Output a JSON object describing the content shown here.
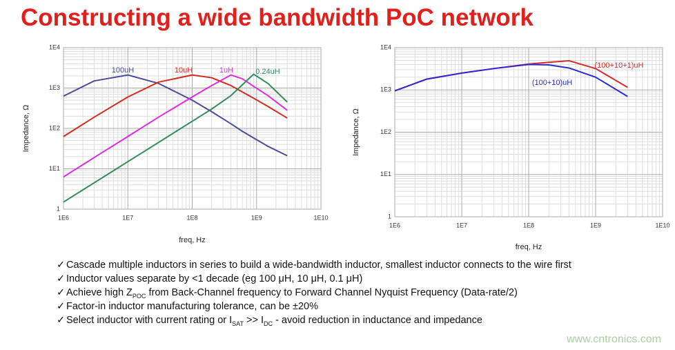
{
  "slide_title": "Constructing a wide bandwidth PoC network",
  "chart_data": [
    {
      "type": "line",
      "log_x": true,
      "log_y": true,
      "grid": true,
      "minor_grid": true,
      "xlabel": "freq, Hz",
      "ylabel": "Impedance, Ω",
      "x": [
        1000000,
        3000000,
        10000000,
        30000000,
        100000000,
        200000000,
        400000000,
        600000000,
        900000000,
        1500000000,
        3000000000
      ],
      "xlim": [
        1000000,
        10000000000
      ],
      "xticks": [
        {
          "value": 1000000,
          "label": "1E6"
        },
        {
          "value": 10000000,
          "label": "1E7"
        },
        {
          "value": 100000000,
          "label": "1E8"
        },
        {
          "value": 1000000000,
          "label": "1E9"
        },
        {
          "value": 10000000000,
          "label": "1E10"
        }
      ],
      "ylim": [
        1,
        10000
      ],
      "yticks": [
        1,
        {
          "value": 10,
          "label": "1E1"
        },
        {
          "value": 100,
          "label": "1E2"
        },
        {
          "value": 1000,
          "label": "1E3"
        },
        {
          "value": 10000,
          "label": "1E4"
        }
      ],
      "series": [
        {
          "name": "100uH",
          "color": "#4b4b9b",
          "values": [
            630,
            1500,
            2100,
            1300,
            500,
            260,
            130,
            85,
            58,
            36,
            21
          ]
        },
        {
          "name": "10uH",
          "color": "#d42a1e",
          "values": [
            63,
            190,
            600,
            1400,
            2100,
            1800,
            1150,
            800,
            560,
            350,
            180
          ]
        },
        {
          "name": "1uH",
          "color": "#e02ae0",
          "values": [
            6.3,
            19,
            63,
            190,
            600,
            1150,
            2100,
            1700,
            1100,
            650,
            280
          ]
        },
        {
          "name": "0.24uH",
          "color": "#2e8b57",
          "values": [
            1.5,
            4.5,
            15,
            45,
            150,
            300,
            650,
            1200,
            2200,
            1300,
            450
          ]
        }
      ]
    },
    {
      "type": "line",
      "log_x": true,
      "log_y": true,
      "grid": true,
      "minor_grid": true,
      "xlabel": "freq, Hz",
      "ylabel": "Impedance, Ω",
      "x": [
        1000000,
        3000000,
        10000000,
        30000000,
        100000000,
        200000000,
        400000000,
        1000000000,
        3000000000
      ],
      "xlim": [
        1000000,
        10000000000
      ],
      "xticks": [
        {
          "value": 1000000,
          "label": "1E6"
        },
        {
          "value": 10000000,
          "label": "1E7"
        },
        {
          "value": 100000000,
          "label": "1E8"
        },
        {
          "value": 1000000000,
          "label": "1E9"
        },
        {
          "value": 10000000000,
          "label": "1E10"
        }
      ],
      "ylim": [
        1,
        10000
      ],
      "yticks": [
        1,
        {
          "value": 10,
          "label": "1E1"
        },
        {
          "value": 100,
          "label": "1E2"
        },
        {
          "value": 1000,
          "label": "1E3"
        },
        {
          "value": 10000,
          "label": "1E4"
        }
      ],
      "series": [
        {
          "name": "(100+10+1)uH",
          "color": "#d42a2a",
          "values": [
            950,
            1800,
            2500,
            3200,
            4100,
            4500,
            4900,
            3200,
            1150
          ]
        },
        {
          "name": "(100+10)uH",
          "color": "#2a2ad4",
          "values": [
            950,
            1800,
            2500,
            3200,
            4000,
            3900,
            3300,
            2000,
            700
          ]
        }
      ]
    }
  ],
  "bullets": [
    [
      "Cascade multiple inductors in series to build a wide-bandwidth inductor, smallest inductor connects to the wire first"
    ],
    [
      "Inductor values separate by <1 decade (eg 100 μH, 10 μH, 0.1 μH)"
    ],
    [
      "Achieve high Z",
      "POC",
      " from Back-Channel frequency to Forward Channel Nyquist Frequency (Data-rate/2)"
    ],
    [
      "Factor-in inductor manufacturing tolerance, can be ±20%"
    ],
    [
      "Select inductor with current rating or I",
      "SAT",
      " >> I",
      "DC",
      " - avoid reduction in inductance and impedance"
    ]
  ],
  "watermark": "www.cntronics.com"
}
